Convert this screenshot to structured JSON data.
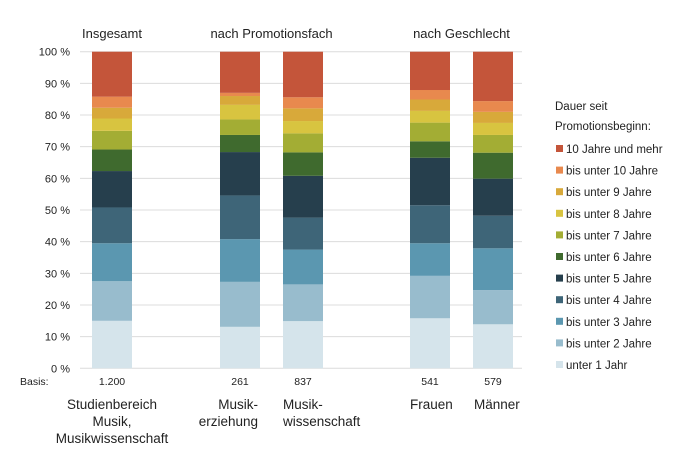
{
  "chart_data": {
    "type": "bar",
    "stacked": true,
    "group_headers": [
      {
        "label": "Insgesamt",
        "bars": [
          0
        ]
      },
      {
        "label": "nach Promotionsfach",
        "bars": [
          1,
          2
        ]
      },
      {
        "label": "nach Geschlecht",
        "bars": [
          3,
          4
        ]
      }
    ],
    "categories": [
      [
        "Studienbereich",
        "Musik,",
        "Musikwissenschaft"
      ],
      [
        "Musik-",
        "erziehung"
      ],
      [
        "Musik-",
        "wissenschaft"
      ],
      [
        "Frauen"
      ],
      [
        "Männer"
      ]
    ],
    "basis_label": "Basis:",
    "basis": [
      "1.200",
      "261",
      "837",
      "541",
      "579"
    ],
    "ylim": [
      0,
      100
    ],
    "yticks": [
      0,
      10,
      20,
      30,
      40,
      50,
      60,
      70,
      80,
      90,
      100
    ],
    "ytick_suffix": " %",
    "grid": true,
    "legend_title": [
      "Dauer seit",
      "Promotionsbeginn:"
    ],
    "legend_position": "right",
    "series": [
      {
        "name": "unter 1 Jahr",
        "color": "#d5e4eb",
        "values": [
          15.0,
          13.1,
          14.9,
          15.8,
          13.9
        ]
      },
      {
        "name": "bis unter 2 Jahre",
        "color": "#98bccd",
        "values": [
          12.5,
          14.2,
          11.6,
          13.4,
          10.8
        ]
      },
      {
        "name": "bis unter 3 Jahre",
        "color": "#5b97b0",
        "values": [
          12.0,
          13.5,
          11.0,
          10.3,
          13.2
        ]
      },
      {
        "name": "bis unter 4 Jahre",
        "color": "#3e6578",
        "values": [
          11.3,
          13.8,
          10.1,
          12.0,
          10.3
        ]
      },
      {
        "name": "bis unter 5 Jahre",
        "color": "#263f4d",
        "values": [
          11.5,
          13.7,
          13.2,
          15.0,
          11.7
        ]
      },
      {
        "name": "bis unter 6 Jahre",
        "color": "#3f6a2e",
        "values": [
          6.8,
          5.4,
          7.4,
          5.2,
          8.2
        ]
      },
      {
        "name": "bis unter 7 Jahre",
        "color": "#a3ad34",
        "values": [
          5.9,
          4.9,
          6.0,
          5.9,
          5.6
        ]
      },
      {
        "name": "bis unter 8 Jahre",
        "color": "#d8c440",
        "values": [
          3.9,
          4.6,
          3.9,
          3.7,
          3.8
        ]
      },
      {
        "name": "bis unter 9 Jahre",
        "color": "#d8a93a",
        "values": [
          3.4,
          2.8,
          4.0,
          3.6,
          3.5
        ]
      },
      {
        "name": "bis unter 10 Jahre",
        "color": "#e8894e",
        "values": [
          3.5,
          1.0,
          3.5,
          3.0,
          3.4
        ]
      },
      {
        "name": "10 Jahre und mehr",
        "color": "#c4553a",
        "values": [
          14.2,
          13.0,
          14.4,
          12.1,
          15.6
        ]
      }
    ]
  }
}
